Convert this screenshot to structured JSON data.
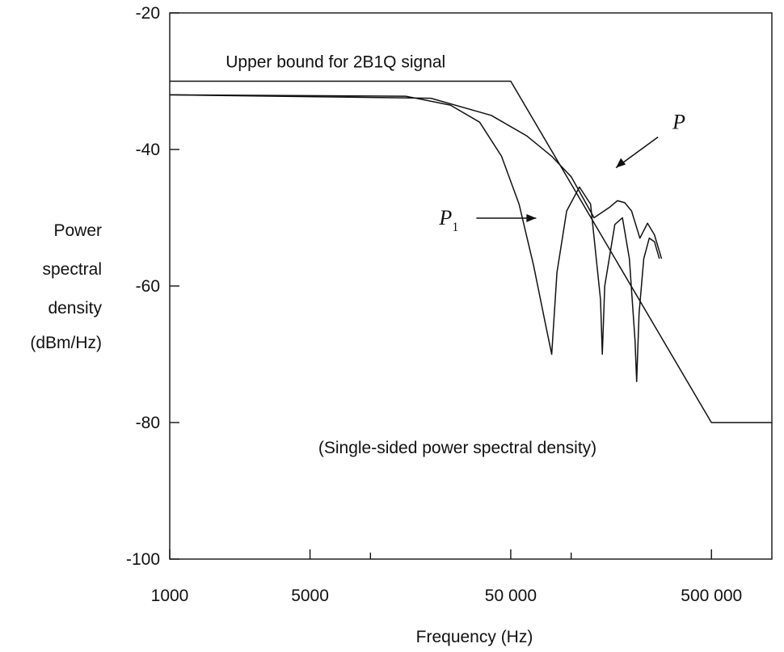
{
  "chart_data": {
    "type": "line",
    "title": "",
    "xlabel": "Frequency (Hz)",
    "ylabel": [
      "Power",
      "spectral",
      "density",
      "(dBm/Hz)"
    ],
    "x_scale": "log",
    "xlim": [
      1000,
      1000000
    ],
    "ylim": [
      -100,
      -20
    ],
    "x_ticks": [
      {
        "value": 1000,
        "label": "1000"
      },
      {
        "value": 5000,
        "label": "5000"
      },
      {
        "value": 50000,
        "label": "50 000"
      },
      {
        "value": 500000,
        "label": "500 000"
      }
    ],
    "x_minor_ticks": [
      10000,
      100000
    ],
    "y_ticks": [
      {
        "value": -20,
        "label": "-20"
      },
      {
        "value": -40,
        "label": "-40"
      },
      {
        "value": -60,
        "label": "-60"
      },
      {
        "value": -80,
        "label": "-80"
      },
      {
        "value": -100,
        "label": "-100"
      }
    ],
    "grid": false,
    "series": [
      {
        "name": "Upper bound for 2B1Q signal",
        "x": [
          1000,
          50000,
          500000,
          1000000
        ],
        "y": [
          -30,
          -30,
          -80,
          -80
        ]
      },
      {
        "name": "P",
        "x": [
          1000,
          20000,
          40000,
          60000,
          80000,
          100000,
          130000,
          155000,
          170000,
          185000,
          200000,
          220000,
          240000,
          260000,
          282000
        ],
        "y": [
          -32,
          -32.5,
          -35,
          -38,
          -41,
          -44,
          -50,
          -48.5,
          -47.5,
          -47.8,
          -49,
          -53,
          -50.8,
          -52.5,
          -56
        ]
      },
      {
        "name": "P1",
        "x": [
          1000,
          15000,
          25000,
          35000,
          45000,
          55000,
          65000,
          75000,
          80000,
          85000,
          95000,
          110000,
          125000,
          140000,
          143000,
          147000,
          165000,
          180000,
          195000,
          208000,
          212000,
          218000,
          230000,
          245000,
          260000,
          275000
        ],
        "y": [
          -32,
          -32.2,
          -33.5,
          -36,
          -41,
          -48,
          -57,
          -66,
          -70,
          -58,
          -49,
          -45.5,
          -48,
          -62,
          -70,
          -60,
          -51,
          -50,
          -56,
          -68,
          -74,
          -64,
          -56,
          -53,
          -53.5,
          -56
        ]
      }
    ],
    "annotations": [
      {
        "text": "Upper bound for 2B1Q signal",
        "x": 1900,
        "y": -28
      },
      {
        "text": "(Single-sided power spectral density)",
        "x": 5500,
        "y": -84.5
      },
      {
        "label": "P",
        "x": 320000,
        "y": -37
      },
      {
        "label": "P",
        "subscript": "1",
        "x": 22000,
        "y": -51
      }
    ]
  }
}
